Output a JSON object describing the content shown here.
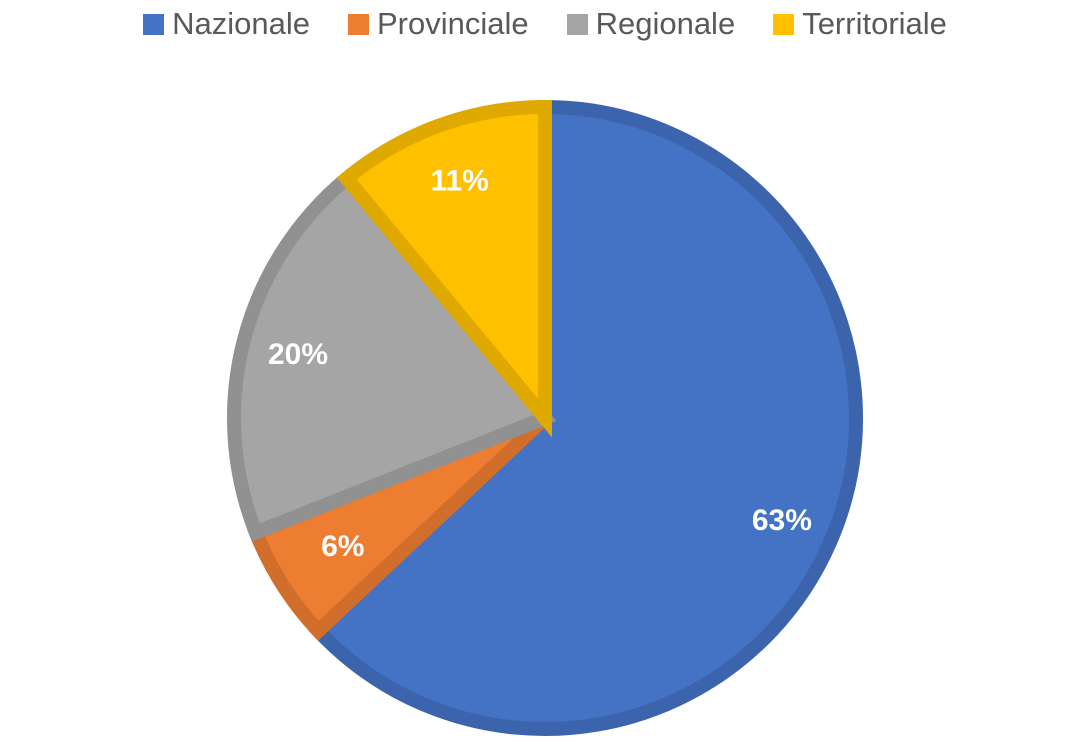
{
  "chart_data": {
    "type": "pie",
    "categories": [
      "Nazionale",
      "Provinciale",
      "Regionale",
      "Territoriale"
    ],
    "values": [
      63,
      6,
      20,
      11
    ],
    "data_labels": [
      "63%",
      "6%",
      "20%",
      "11%"
    ],
    "unit": "%",
    "legend_position": "top",
    "start_angle": "12 o'clock, clockwise",
    "colors": [
      "#4472C4",
      "#ED7D31",
      "#A5A5A5",
      "#FFC000"
    ]
  }
}
